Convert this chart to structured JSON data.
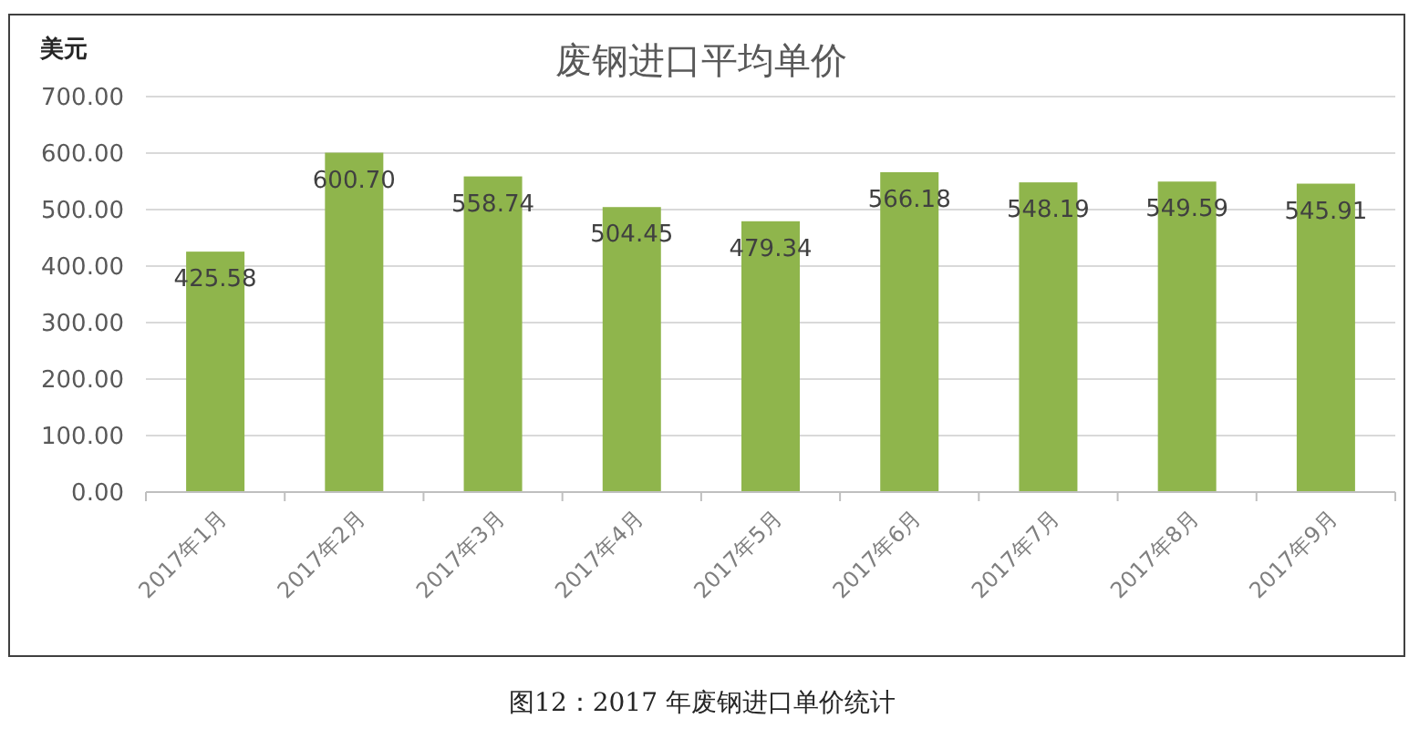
{
  "chart_data": {
    "type": "bar",
    "title": "废钢进口平均单价",
    "ylabel": "美元",
    "categories": [
      "2017年1月",
      "2017年2月",
      "2017年3月",
      "2017年4月",
      "2017年5月",
      "2017年6月",
      "2017年7月",
      "2017年8月",
      "2017年9月"
    ],
    "values": [
      425.58,
      600.7,
      558.74,
      504.45,
      479.34,
      566.18,
      548.19,
      549.59,
      545.91
    ],
    "value_labels": [
      "425.58",
      "600.70",
      "558.74",
      "504.45",
      "479.34",
      "566.18",
      "548.19",
      "549.59",
      "545.91"
    ],
    "color": "#8fb54c",
    "ylim": [
      0,
      700
    ],
    "yticks": [
      {
        "value": 0,
        "label": "0.00"
      },
      {
        "value": 100,
        "label": "100.00"
      },
      {
        "value": 200,
        "label": "200.00"
      },
      {
        "value": 300,
        "label": "300.00"
      },
      {
        "value": 400,
        "label": "400.00"
      },
      {
        "value": 500,
        "label": "500.00"
      },
      {
        "value": 600,
        "label": "600.00"
      },
      {
        "value": 700,
        "label": "700.00"
      }
    ],
    "grid": "y",
    "annotations": [
      "图12：2017 年废钢进口单价统计"
    ]
  }
}
